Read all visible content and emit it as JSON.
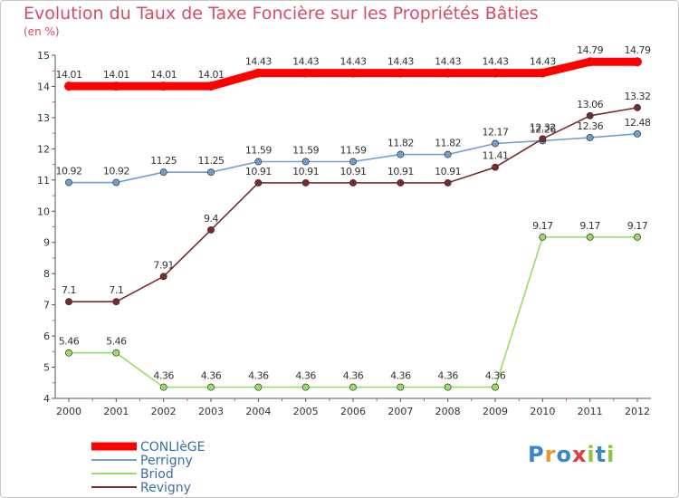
{
  "chart_data": {
    "type": "line",
    "title": "Evolution du Taux de Taxe Foncière sur les Propriétés Bâties",
    "subtitle": "(en %)",
    "x": [
      "2000",
      "2001",
      "2002",
      "2003",
      "2004",
      "2005",
      "2006",
      "2007",
      "2008",
      "2009",
      "2010",
      "2011",
      "2012"
    ],
    "ylim": [
      4,
      15
    ],
    "yticks": [
      "4",
      "5",
      "6",
      "7",
      "8",
      "9",
      "10",
      "11",
      "12",
      "13",
      "14",
      "15"
    ],
    "grid": false,
    "series": [
      {
        "name": "CONLIèGE",
        "color": "#ff0000",
        "values": [
          14.01,
          14.01,
          14.01,
          14.01,
          14.43,
          14.43,
          14.43,
          14.43,
          14.43,
          14.43,
          14.43,
          14.79,
          14.79
        ],
        "labels": [
          "14.01",
          "14.01",
          "14.01",
          "14.01",
          "14.43",
          "14.43",
          "14.43",
          "14.43",
          "14.43",
          "14.43",
          "14.43",
          "14.79",
          "14.79"
        ]
      },
      {
        "name": "Perrigny",
        "color": "#6fa0d0",
        "values": [
          10.92,
          10.92,
          11.25,
          11.25,
          11.59,
          11.59,
          11.59,
          11.82,
          11.82,
          12.17,
          12.26,
          12.36,
          12.48
        ],
        "labels": [
          "10.92",
          "10.92",
          "11.25",
          "11.25",
          "11.59",
          "11.59",
          "11.59",
          "11.82",
          "11.82",
          "12.17",
          "12.26",
          "12.36",
          "12.48"
        ]
      },
      {
        "name": "Briod",
        "color": "#99dd66",
        "values": [
          5.46,
          5.46,
          4.36,
          4.36,
          4.36,
          4.36,
          4.36,
          4.36,
          4.36,
          4.36,
          9.17,
          9.17,
          9.17
        ],
        "labels": [
          "5.46",
          "5.46",
          "4.36",
          "4.36",
          "4.36",
          "4.36",
          "4.36",
          "4.36",
          "4.36",
          "4.36",
          "9.17",
          "9.17",
          "9.17"
        ]
      },
      {
        "name": "Revigny",
        "color": "#7a2a2a",
        "values": [
          7.1,
          7.1,
          7.91,
          9.4,
          10.91,
          10.91,
          10.91,
          10.91,
          10.91,
          11.41,
          12.32,
          13.06,
          13.32
        ],
        "labels": [
          "7.1",
          "7.1",
          "7.91",
          "9.4",
          "10.91",
          "10.91",
          "10.91",
          "10.91",
          "10.91",
          "11.41",
          "12.32",
          "13.06",
          "13.32"
        ]
      }
    ],
    "legend": [
      "CONLIèGE",
      "Perrigny",
      "Briod",
      "Revigny"
    ],
    "legend_position": "bottom-left"
  },
  "brand": {
    "text": "Proxiti",
    "letters": [
      "P",
      "r",
      "o",
      "x",
      "i",
      "t",
      "i"
    ],
    "colors": [
      "#3a86c8",
      "#e8962a",
      "#3a86c8",
      "#e03c3c",
      "#8cc63e",
      "#3a86c8",
      "#8cc63e"
    ]
  }
}
